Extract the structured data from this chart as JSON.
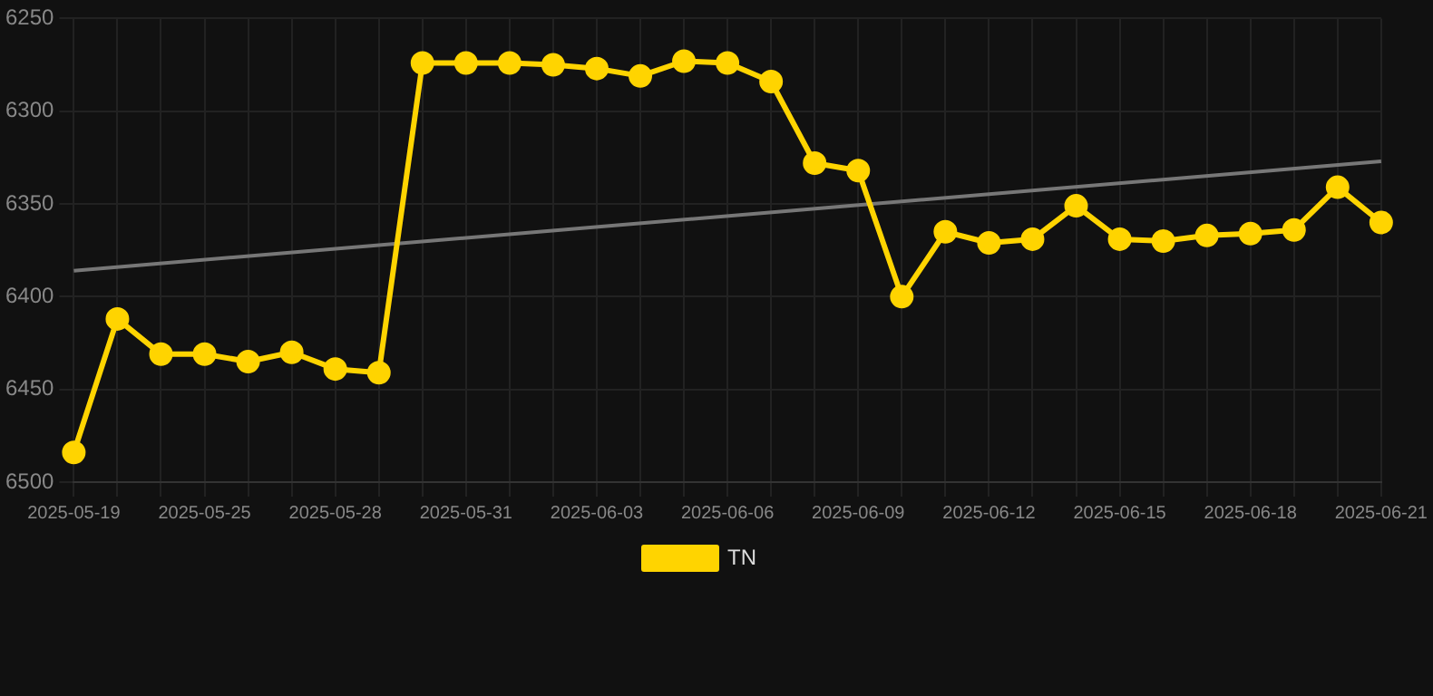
{
  "chart_data": {
    "type": "line",
    "categories": [
      "2025-05-19",
      null,
      null,
      "2025-05-25",
      null,
      null,
      "2025-05-28",
      null,
      null,
      "2025-05-31",
      null,
      null,
      "2025-06-03",
      null,
      null,
      "2025-06-06",
      null,
      null,
      "2025-06-09",
      null,
      null,
      "2025-06-12",
      null,
      null,
      "2025-06-15",
      null,
      null,
      "2025-06-18",
      null,
      null,
      "2025-06-21"
    ],
    "series": [
      {
        "name": "TN",
        "color": "#ffd400",
        "marker": "circle",
        "values": [
          6484,
          6412,
          6431,
          6431,
          6435,
          6430,
          6439,
          6441,
          6274,
          6274,
          6274,
          6275,
          6277,
          6281,
          6273,
          6274,
          6284,
          6328,
          6332,
          6400,
          6365,
          6371,
          6369,
          6351,
          6369,
          6370,
          6367,
          6366,
          6364,
          6341,
          6360
        ]
      },
      {
        "color": "#777777",
        "marker": "none",
        "values": [
          6386,
          null,
          null,
          null,
          null,
          null,
          null,
          null,
          null,
          null,
          null,
          null,
          null,
          null,
          null,
          null,
          null,
          null,
          null,
          null,
          null,
          null,
          null,
          null,
          null,
          null,
          null,
          null,
          null,
          null,
          6327
        ]
      }
    ],
    "ylim": [
      6500,
      6250
    ],
    "yticks": [
      6250,
      6300,
      6350,
      6400,
      6450,
      6500
    ],
    "grid": true,
    "legend": "bottom"
  }
}
